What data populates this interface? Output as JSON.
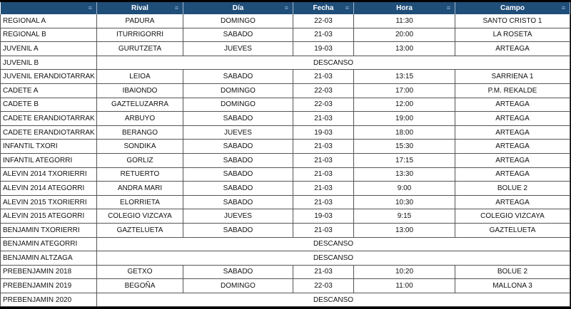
{
  "headers": [
    "",
    "Rival",
    "Día",
    "Fecha",
    "Hora",
    "Campo"
  ],
  "filter_icon": "filter-icon",
  "rows": [
    [
      "REGIONAL A",
      "PADURA",
      "DOMINGO",
      "22-03",
      "11:30",
      "SANTO CRISTO 1"
    ],
    [
      "REGIONAL B",
      "ITURRIGORRI",
      "SABADO",
      "21-03",
      "20:00",
      "LA ROSETA"
    ],
    [
      "JUVENIL A",
      "GURUTZETA",
      "JUEVES",
      "19-03",
      "13:00",
      "ARTEAGA"
    ],
    [
      "JUVENIL B",
      "DESCANSO"
    ],
    [
      "JUVENIL ERANDIOTARRAK",
      "LEIOA",
      "SABADO",
      "21-03",
      "13:15",
      "SARRIENA 1"
    ],
    [
      "CADETE A",
      "IBAIONDO",
      "DOMINGO",
      "22-03",
      "17:00",
      "P.M. REKALDE"
    ],
    [
      "CADETE B",
      "GAZTELUZARRA",
      "DOMINGO",
      "22-03",
      "12:00",
      "ARTEAGA"
    ],
    [
      "CADETE ERANDIOTARRAK",
      "ARBUYO",
      "SABADO",
      "21-03",
      "19:00",
      "ARTEAGA"
    ],
    [
      "CADETE ERANDIOTARRAK",
      "BERANGO",
      "JUEVES",
      "19-03",
      "18:00",
      "ARTEAGA"
    ],
    [
      "INFANTIL TXORI",
      "SONDIKA",
      "SABADO",
      "21-03",
      "15:30",
      "ARTEAGA"
    ],
    [
      "INFANTIL ATEGORRI",
      "GORLIZ",
      "SABADO",
      "21-03",
      "17:15",
      "ARTEAGA"
    ],
    [
      "ALEVIN 2014 TXORIERRI",
      "RETUERTO",
      "SABADO",
      "21-03",
      "13:30",
      "ARTEAGA"
    ],
    [
      "ALEVIN 2014 ATEGORRI",
      "ANDRA MARI",
      "SABADO",
      "21-03",
      "9:00",
      "BOLUE 2"
    ],
    [
      "ALEVIN 2015 TXORIERRI",
      "ELORRIETA",
      "SABADO",
      "21-03",
      "10:30",
      "ARTEAGA"
    ],
    [
      "ALEVIN 2015 ATEGORRI",
      "COLEGIO VIZCAYA",
      "JUEVES",
      "19-03",
      "9:15",
      "COLEGIO VIZCAYA"
    ],
    [
      "BENJAMIN TXORIERRI",
      "GAZTELUETA",
      "SABADO",
      "21-03",
      "13:00",
      "GAZTELUETA"
    ],
    [
      "BENJAMIN ATEGORRI",
      "DESCANSO"
    ],
    [
      "BENJAMIN ALTZAGA",
      "DESCANSO"
    ],
    [
      "PREBENJAMIN 2018",
      "GETXO",
      "SABADO",
      "21-03",
      "10:20",
      "BOLUE 2"
    ],
    [
      "PREBENJAMIN 2019",
      "BEGOÑA",
      "DOMINGO",
      "22-03",
      "11:00",
      "MALLONA 3"
    ],
    [
      "PREBENJAMIN 2020",
      "DESCANSO"
    ]
  ]
}
